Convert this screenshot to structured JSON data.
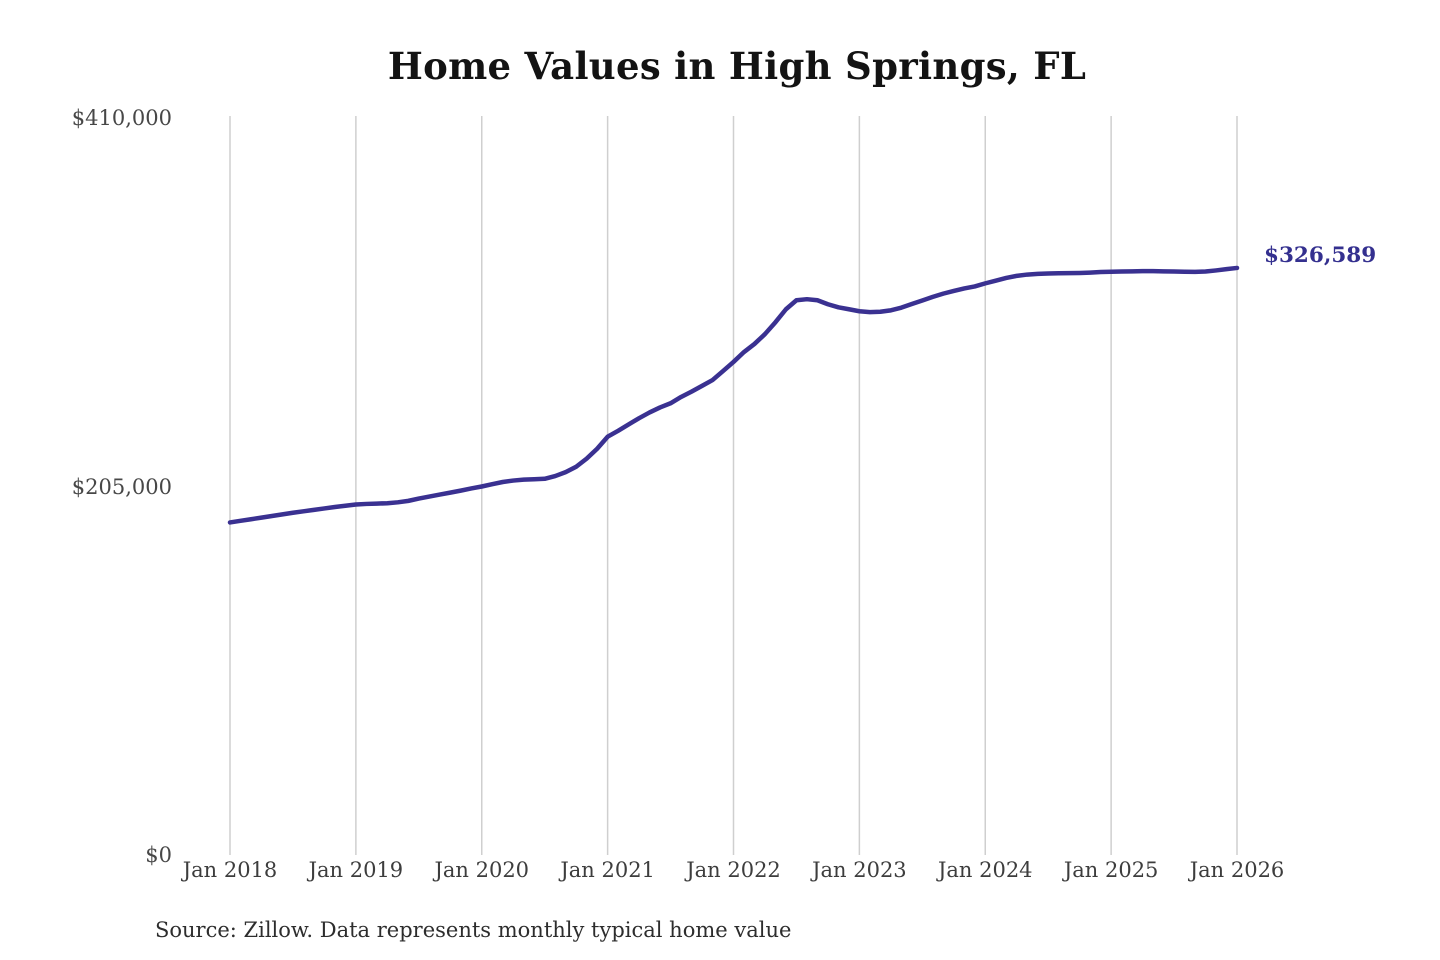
{
  "title": "Home Values in High Springs, FL",
  "latest_value_label": "$326,589",
  "source_note": "Source: Zillow. Data represents monthly typical home value",
  "colors": {
    "line": "#3a3191",
    "latest_label": "#34308f",
    "grid": "#cfcfcf",
    "title": "#131313",
    "axis_text": "#3d3d3d",
    "source_text": "#2d2d2d",
    "background": "#ffffff"
  },
  "chart_data": {
    "type": "line",
    "title": "Home Values in High Springs, FL",
    "unit": "USD",
    "x_interval": "monthly",
    "x_start": "Jan 2018",
    "x_end": "Jan 2026",
    "x_tick_labels": [
      "Jan 2018",
      "Jan 2019",
      "Jan 2020",
      "Jan 2021",
      "Jan 2022",
      "Jan 2023",
      "Jan 2024",
      "Jan 2025",
      "Jan 2026"
    ],
    "y_tick_values": [
      0,
      205000,
      410000
    ],
    "y_tick_labels": [
      "$0",
      "$205,000",
      "$410,000"
    ],
    "ylim": [
      0,
      410000
    ],
    "grid": "vertical-only",
    "legend": "none",
    "annotation": {
      "text": "$326,589",
      "value": 326589,
      "position": "end-of-line"
    },
    "series": [
      {
        "name": "Typical home value",
        "color": "#3a3191",
        "values": [
          185000,
          185900,
          186800,
          187700,
          188600,
          189500,
          190400,
          191200,
          192000,
          192800,
          193600,
          194300,
          195000,
          195300,
          195500,
          195700,
          196200,
          197000,
          198300,
          199400,
          200500,
          201600,
          202700,
          203900,
          205000,
          206300,
          207500,
          208300,
          208800,
          209000,
          209300,
          210800,
          213000,
          216000,
          220500,
          226000,
          232700,
          236000,
          239500,
          243000,
          246200,
          249000,
          251300,
          254800,
          257800,
          261000,
          264200,
          269200,
          274300,
          279800,
          284300,
          289800,
          296400,
          303600,
          308600,
          309200,
          308600,
          306400,
          304700,
          303600,
          302500,
          302000,
          302200,
          303000,
          304500,
          306500,
          308500,
          310500,
          312300,
          313800,
          315200,
          316300,
          318000,
          319500,
          321000,
          322200,
          322900,
          323300,
          323500,
          323600,
          323700,
          323800,
          324000,
          324300,
          324500,
          324600,
          324700,
          324800,
          324800,
          324700,
          324600,
          324500,
          324400,
          324600,
          325200,
          325900,
          326589
        ]
      }
    ]
  }
}
